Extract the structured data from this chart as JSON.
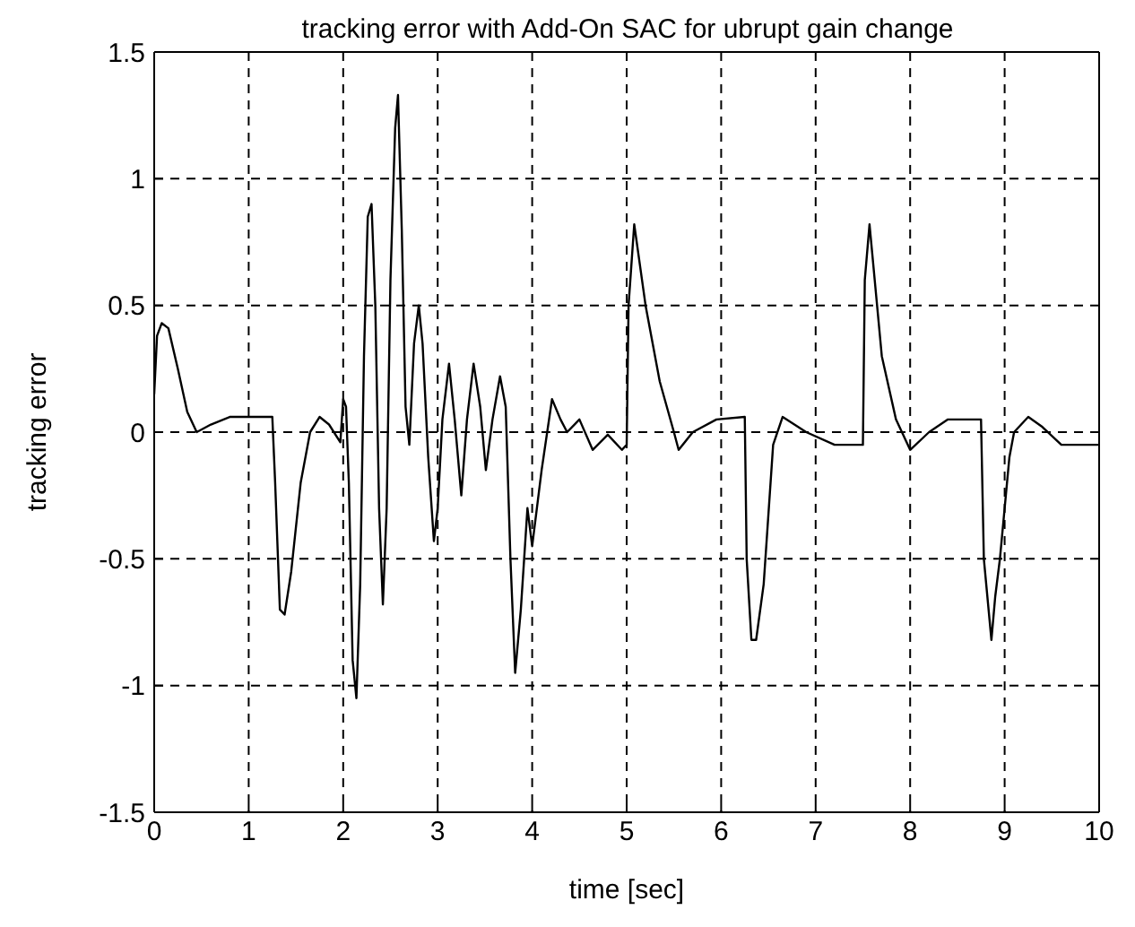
{
  "chart_data": {
    "type": "line",
    "title": "tracking error with Add-On SAC for ubrupt gain change",
    "xlabel": "time [sec]",
    "ylabel": "tracking error",
    "xlim": [
      0,
      10
    ],
    "xticks": [
      0,
      1,
      2,
      3,
      4,
      5,
      6,
      7,
      8,
      9,
      10
    ],
    "ylim": [
      -1.5,
      1.5
    ],
    "yticks": [
      -1.5,
      -1,
      -0.5,
      0,
      0.5,
      1,
      1.5
    ],
    "grid": true,
    "legend": false,
    "marker": "none",
    "line_style": "solid",
    "series": [
      {
        "color": "#000000",
        "x": [
          0,
          0.03,
          0.08,
          0.15,
          0.25,
          0.35,
          0.45,
          0.6,
          0.8,
          1.0,
          1.25,
          1.28,
          1.33,
          1.38,
          1.45,
          1.55,
          1.65,
          1.75,
          1.85,
          1.97,
          2.0,
          2.03,
          2.06,
          2.1,
          2.14,
          2.18,
          2.22,
          2.26,
          2.3,
          2.34,
          2.38,
          2.42,
          2.46,
          2.5,
          2.55,
          2.58,
          2.62,
          2.66,
          2.7,
          2.75,
          2.8,
          2.84,
          2.9,
          2.96,
          3.0,
          3.05,
          3.12,
          3.18,
          3.25,
          3.31,
          3.38,
          3.45,
          3.51,
          3.58,
          3.66,
          3.72,
          3.77,
          3.82,
          3.88,
          3.95,
          4.0,
          4.1,
          4.21,
          4.3,
          4.37,
          4.5,
          4.64,
          4.8,
          4.95,
          5.0,
          5.02,
          5.08,
          5.2,
          5.35,
          5.5,
          5.55,
          5.7,
          5.95,
          6.25,
          6.27,
          6.32,
          6.37,
          6.45,
          6.55,
          6.65,
          6.9,
          7.2,
          7.5,
          7.52,
          7.57,
          7.7,
          7.85,
          8.0,
          8.2,
          8.4,
          8.75,
          8.78,
          8.86,
          8.9,
          8.95,
          9.05,
          9.1,
          9.25,
          9.4,
          9.6,
          10
        ],
        "values": [
          0.15,
          0.38,
          0.43,
          0.41,
          0.25,
          0.08,
          0,
          0.03,
          0.06,
          0.06,
          0.06,
          -0.2,
          -0.7,
          -0.72,
          -0.55,
          -0.2,
          0,
          0.06,
          0.03,
          -0.04,
          0.13,
          0.1,
          -0.2,
          -0.9,
          -1.05,
          -0.6,
          0.3,
          0.85,
          0.9,
          0.5,
          -0.3,
          -0.68,
          -0.3,
          0.6,
          1.2,
          1.33,
          0.8,
          0.1,
          -0.05,
          0.35,
          0.5,
          0.35,
          -0.1,
          -0.43,
          -0.3,
          0.05,
          0.27,
          0.05,
          -0.25,
          0.05,
          0.27,
          0.1,
          -0.15,
          0.05,
          0.22,
          0.1,
          -0.5,
          -0.95,
          -0.7,
          -0.3,
          -0.45,
          -0.15,
          0.13,
          0.05,
          0,
          0.05,
          -0.07,
          -0.01,
          -0.07,
          -0.05,
          0.5,
          0.82,
          0.5,
          0.2,
          0,
          -0.07,
          0,
          0.05,
          0.06,
          -0.5,
          -0.82,
          -0.82,
          -0.6,
          -0.05,
          0.06,
          0,
          -0.05,
          -0.05,
          0.6,
          0.82,
          0.3,
          0.05,
          -0.07,
          0,
          0.05,
          0.05,
          -0.5,
          -0.82,
          -0.65,
          -0.5,
          -0.1,
          0,
          0.06,
          0.02,
          -0.05,
          -0.05
        ]
      }
    ]
  }
}
